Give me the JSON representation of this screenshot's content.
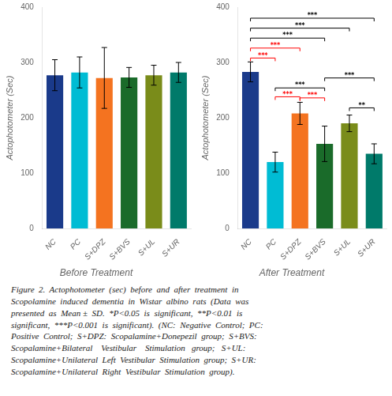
{
  "chart_data": [
    {
      "type": "bar",
      "title": "Before Treatment",
      "categories": [
        "NC",
        "PC",
        "S+DPZ",
        "S+BVS",
        "S+UL",
        "S+UR"
      ],
      "values": [
        277,
        282,
        272,
        273,
        277,
        282
      ],
      "errors": [
        28,
        28,
        55,
        18,
        18,
        18
      ],
      "colors": [
        "#1a3a8a",
        "#00bcd4",
        "#f47320",
        "#1a6b2a",
        "#7a8c1a",
        "#007a6a"
      ],
      "ylabel": "Actophotometer (Sec)",
      "ylim": [
        0,
        400
      ],
      "yticks": [
        0,
        100,
        200,
        300,
        400
      ],
      "grid": false
    },
    {
      "type": "bar",
      "title": "After Treatment",
      "categories": [
        "NC",
        "PC",
        "S+DPZ",
        "S+BVS",
        "S+UL",
        "S+UR"
      ],
      "values": [
        283,
        120,
        208,
        153,
        190,
        135
      ],
      "errors": [
        18,
        18,
        20,
        32,
        15,
        18
      ],
      "colors": [
        "#1a3a8a",
        "#00bcd4",
        "#f47320",
        "#1a6b2a",
        "#7a8c1a",
        "#007a6a"
      ],
      "ylabel": "Actophotometer (Sec)",
      "ylim": [
        0,
        400
      ],
      "yticks": [
        0,
        100,
        200,
        300,
        400
      ],
      "grid": false,
      "annotations": [
        {
          "x1": "NC",
          "x2": "PC",
          "y": 308,
          "label": "***",
          "color": "#ff0000"
        },
        {
          "x1": "NC",
          "x2": "S+DPZ",
          "y": 326,
          "label": "***",
          "color": "#ff0000"
        },
        {
          "x1": "NC",
          "x2": "S+BVS",
          "y": 344,
          "label": "***",
          "color": "#000000"
        },
        {
          "x1": "NC",
          "x2": "S+UL",
          "y": 362,
          "label": "***",
          "color": "#000000"
        },
        {
          "x1": "NC",
          "x2": "S+UR",
          "y": 380,
          "label": "***",
          "color": "#000000"
        },
        {
          "x1": "PC",
          "x2": "S+DPZ",
          "y": 238,
          "label": "***",
          "color": "#ff0000"
        },
        {
          "x1": "PC",
          "x2": "S+BVS",
          "y": 254,
          "label": "***",
          "color": "#000000"
        },
        {
          "x1": "S+DPZ",
          "x2": "S+BVS",
          "y": 236,
          "label": "***",
          "color": "#ff0000"
        },
        {
          "x1": "S+BVS",
          "x2": "S+UR",
          "y": 272,
          "label": "***",
          "color": "#000000"
        },
        {
          "x1": "S+UL",
          "x2": "S+UR",
          "y": 218,
          "label": "**",
          "color": "#000000"
        }
      ]
    }
  ],
  "caption": "Figure  2.  Actophotometer  (sec)  before  and  after  treatment  in\nScopolamine  induced  dementia  in  Wistar  albino  rats  (Data  was\npresented  as  Mean ±  SD.  *P<0.05  is  significant,  **P<0.01  is\nsignificant,  ***P<0.001  is  significant).  (NC:  Negative  Control;  PC:\nPositive  Control;  S+DPZ:  Scopalamine+Donepezil  group;  S+BVS:\nScopalamine+Bilateral    Vestibular    Stimulation   group;   S+UL:\nScopalamine+Unilateral  Left  Vestibular  Stimulation  group;  S+UR:\nScopalamine+Unilateral  Right  Vestibular  Stimulation  group)."
}
